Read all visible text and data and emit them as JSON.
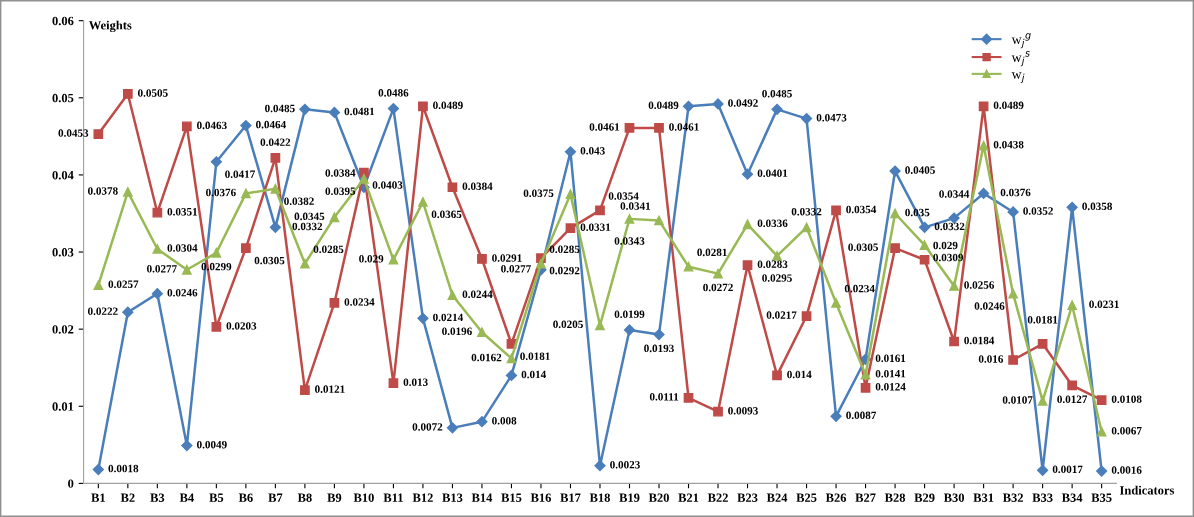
{
  "chart_data": {
    "type": "line",
    "xlabel": "Indicators",
    "ylabel": "Weights",
    "categories": [
      "B1",
      "B2",
      "B3",
      "B4",
      "B5",
      "B6",
      "B7",
      "B8",
      "B9",
      "B10",
      "B11",
      "B12",
      "B13",
      "B14",
      "B15",
      "B16",
      "B17",
      "B18",
      "B19",
      "B20",
      "B21",
      "B22",
      "B23",
      "B24",
      "B25",
      "B26",
      "B27",
      "B28",
      "B29",
      "B30",
      "B31",
      "B32",
      "B33",
      "B34",
      "B35"
    ],
    "series": [
      {
        "name": "w$_{j}$$^{g}$",
        "color": "#4a7ebb",
        "marker": "diamond",
        "values": [
          0.0018,
          0.0222,
          0.0246,
          0.0049,
          0.0417,
          0.0464,
          0.0332,
          0.0485,
          0.0481,
          0.0384,
          0.0486,
          0.0214,
          0.0072,
          0.008,
          0.014,
          0.0277,
          0.043,
          0.0023,
          0.0199,
          0.0193,
          0.0489,
          0.0492,
          0.0401,
          0.0485,
          0.0473,
          0.0087,
          0.0161,
          0.0405,
          0.0332,
          0.0344,
          0.0376,
          0.0352,
          0.0017,
          0.0358,
          0.0016
        ]
      },
      {
        "name": "w$_{j}$$^{s}$",
        "color": "#be4b48",
        "marker": "square",
        "values": [
          0.0453,
          0.0505,
          0.0351,
          0.0463,
          0.0203,
          0.0305,
          0.0422,
          0.0121,
          0.0234,
          0.0403,
          0.013,
          0.0489,
          0.0384,
          0.0291,
          0.0181,
          0.0292,
          0.0331,
          0.0354,
          0.0461,
          0.0461,
          0.0111,
          0.0093,
          0.0283,
          0.014,
          0.0217,
          0.0354,
          0.0124,
          0.0305,
          0.029,
          0.0184,
          0.0489,
          0.016,
          0.0181,
          0.0127,
          0.0108
        ]
      },
      {
        "name": "w$_{j}$",
        "color": "#98b954",
        "marker": "triangle",
        "values": [
          0.0257,
          0.0378,
          0.0304,
          0.0277,
          0.0299,
          0.0376,
          0.0382,
          0.0285,
          0.0345,
          0.0395,
          0.029,
          0.0365,
          0.0244,
          0.0196,
          0.0162,
          0.0285,
          0.0375,
          0.0205,
          0.0343,
          0.0341,
          0.0281,
          0.0272,
          0.0336,
          0.0295,
          0.0332,
          0.0234,
          0.0141,
          0.035,
          0.0309,
          0.0256,
          0.0438,
          0.0246,
          0.0107,
          0.0231,
          0.0067
        ]
      }
    ],
    "ylim": [
      0,
      0.06
    ],
    "yticks": [
      0,
      0.01,
      0.02,
      0.03,
      0.04,
      0.05,
      0.06
    ],
    "grid": false,
    "legend": "top right",
    "data_labels": true,
    "line_style": "solid"
  }
}
